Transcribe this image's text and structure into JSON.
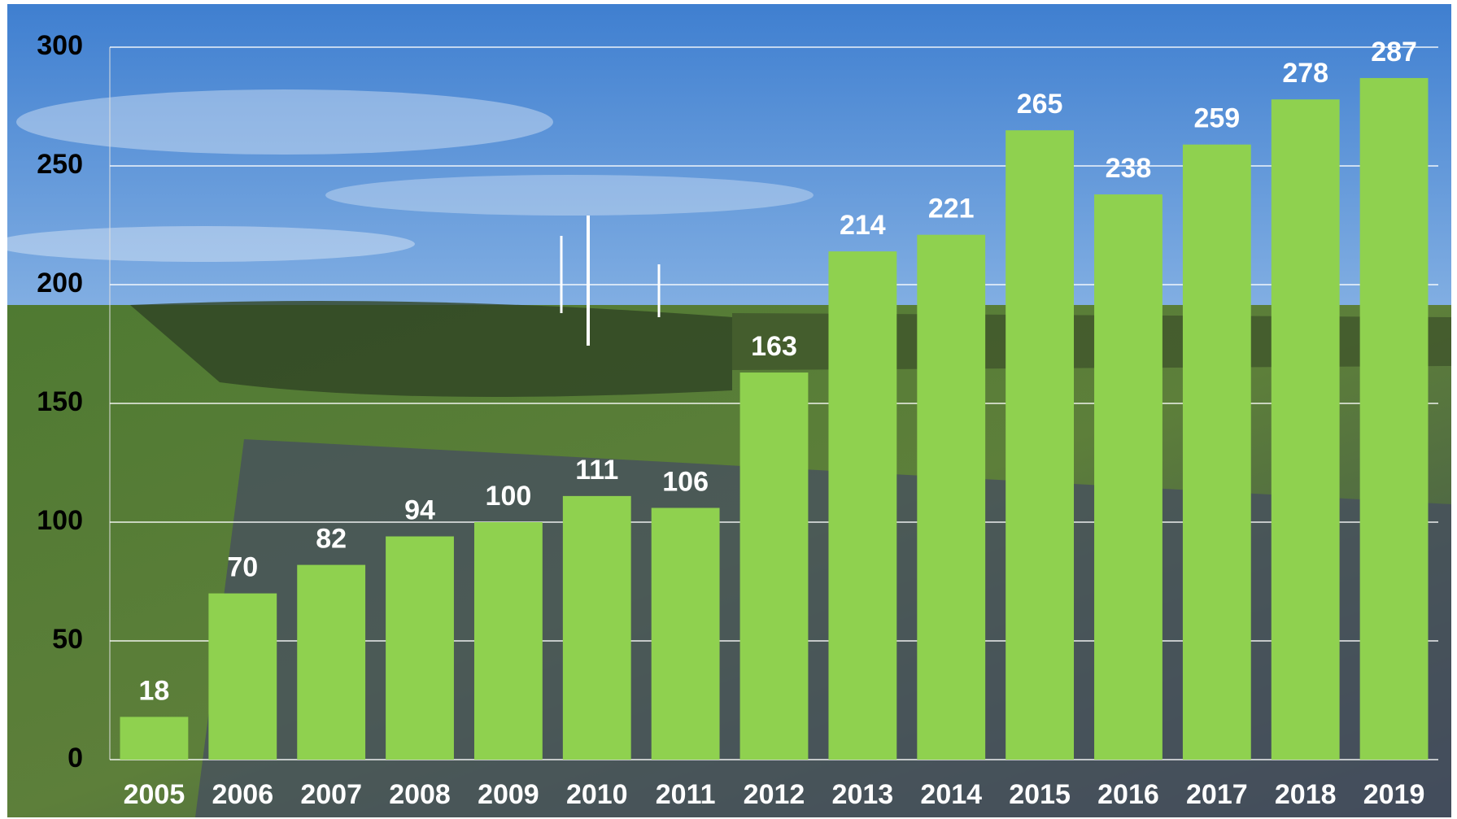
{
  "chart_data": {
    "type": "bar",
    "categories": [
      "2005",
      "2006",
      "2007",
      "2008",
      "2009",
      "2010",
      "2011",
      "2012",
      "2013",
      "2014",
      "2015",
      "2016",
      "2017",
      "2018",
      "2019"
    ],
    "values": [
      18,
      70,
      82,
      94,
      100,
      111,
      106,
      163,
      214,
      221,
      265,
      238,
      259,
      278,
      287
    ],
    "color": "#8fd14f",
    "ylim": [
      0,
      300
    ],
    "yticks": [
      0,
      50,
      100,
      150,
      200,
      250,
      300
    ],
    "grid": true
  }
}
